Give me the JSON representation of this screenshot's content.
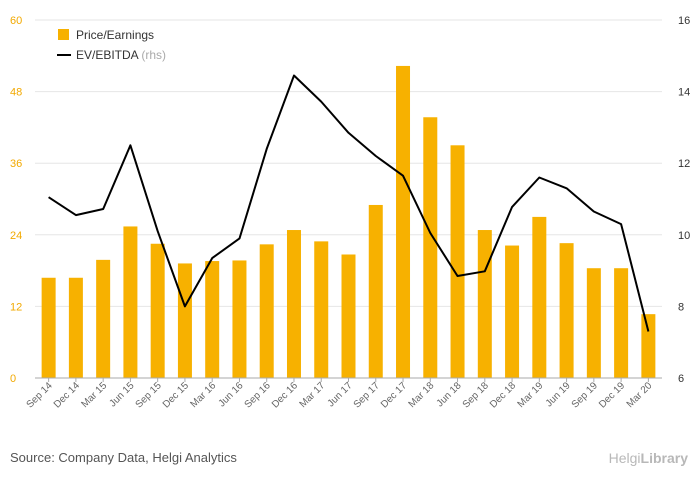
{
  "chart_data": {
    "type": "bar+line",
    "categories": [
      "Sep 14",
      "Dec 14",
      "Mar 15",
      "Jun 15",
      "Sep 15",
      "Dec 15",
      "Mar 16",
      "Jun 16",
      "Sep 16",
      "Dec 16",
      "Mar 17",
      "Jun 17",
      "Sep 17",
      "Dec 17",
      "Mar 18",
      "Jun 18",
      "Sep 18",
      "Dec 18",
      "Mar 19",
      "Jun 19",
      "Sep 19",
      "Dec 19",
      "Mar 20"
    ],
    "series": [
      {
        "name": "Price/Earnings",
        "type": "bar",
        "axis": "left",
        "color": "#f7b100",
        "values": [
          16.8,
          16.8,
          19.8,
          25.4,
          22.5,
          19.2,
          19.6,
          19.7,
          22.4,
          24.8,
          22.9,
          20.7,
          29.0,
          52.3,
          43.7,
          39.0,
          24.8,
          22.2,
          27.0,
          22.6,
          18.4,
          18.4,
          10.7
        ]
      },
      {
        "name": "EV/EBITDA",
        "type": "line",
        "axis": "right",
        "color": "#000000",
        "values": [
          11.05,
          10.55,
          10.72,
          12.5,
          10.1,
          8.0,
          9.35,
          9.9,
          12.4,
          14.45,
          13.72,
          12.85,
          12.2,
          11.65,
          10.05,
          8.85,
          8.98,
          10.78,
          11.6,
          11.3,
          10.65,
          10.3,
          7.3
        ]
      }
    ],
    "legend": {
      "items": [
        "Price/Earnings",
        "EV/EBITDA"
      ],
      "rhs_suffix": "(rhs)",
      "position": "top-left"
    },
    "y_left": {
      "ylim": [
        0,
        60
      ],
      "ticks": [
        "0",
        "12",
        "24",
        "36",
        "48",
        "60"
      ],
      "color": "#f2a900"
    },
    "y_right": {
      "ylim": [
        6,
        16
      ],
      "ticks": [
        "6",
        "8",
        "10",
        "12",
        "14",
        "16"
      ]
    },
    "grid": true
  },
  "footer": {
    "source": "Source: Company Data, Helgi Analytics",
    "brand_light": "Helgi",
    "brand_bold": "Library"
  }
}
